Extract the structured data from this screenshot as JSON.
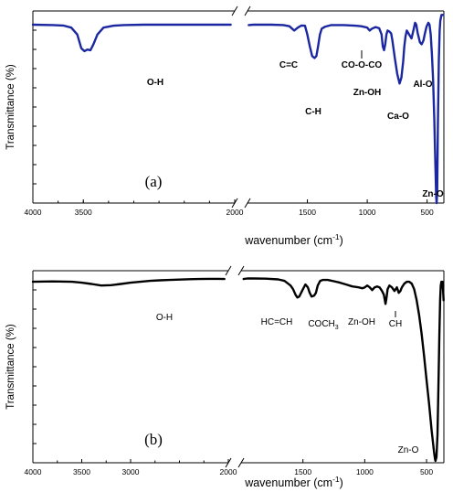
{
  "chart_data": [
    {
      "panel": "(a)",
      "type": "line",
      "ylabel": "Transmittance (%)",
      "xlabel_main": "wavenumber (cm",
      "xlabel_sup": "-1",
      "xlabel_close": ")",
      "xlim": [
        4000,
        360
      ],
      "x_break": 2000,
      "xticks": [
        4000,
        3500,
        2000,
        1500,
        1000,
        500
      ],
      "line_color": "#1a27a0",
      "series": [
        {
          "points": [
            [
              4000,
              93
            ],
            [
              3800,
              92.8
            ],
            [
              3700,
              92.6
            ],
            [
              3620,
              91.5
            ],
            [
              3560,
              88
            ],
            [
              3520,
              81
            ],
            [
              3490,
              79.5
            ],
            [
              3460,
              80.3
            ],
            [
              3430,
              80
            ],
            [
              3400,
              83
            ],
            [
              3360,
              88
            ],
            [
              3300,
              91.5
            ],
            [
              3200,
              92.5
            ],
            [
              3100,
              92.8
            ],
            [
              2900,
              93
            ],
            [
              2700,
              93
            ],
            [
              2500,
              93
            ],
            [
              2300,
              93
            ],
            [
              2100,
              93
            ],
            [
              2040,
              93
            ]
          ]
        },
        {
          "points": [
            [
              1990,
              92.8
            ],
            [
              1950,
              93
            ],
            [
              1900,
              93
            ],
            [
              1800,
              93
            ],
            [
              1700,
              92.8
            ],
            [
              1650,
              92.2
            ],
            [
              1610,
              90
            ],
            [
              1580,
              91.5
            ],
            [
              1550,
              92.6
            ],
            [
              1520,
              92.5
            ],
            [
              1500,
              88
            ],
            [
              1480,
              82
            ],
            [
              1460,
              77
            ],
            [
              1440,
              76
            ],
            [
              1425,
              77
            ],
            [
              1410,
              82
            ],
            [
              1395,
              88
            ],
            [
              1380,
              91
            ],
            [
              1350,
              92
            ],
            [
              1300,
              92.8
            ],
            [
              1200,
              92.8
            ],
            [
              1100,
              92.5
            ],
            [
              1050,
              92.2
            ],
            [
              1000,
              91.5
            ],
            [
              980,
              90
            ],
            [
              960,
              91
            ],
            [
              930,
              91.8
            ],
            [
              900,
              91.2
            ],
            [
              880,
              88
            ],
            [
              870,
              82
            ],
            [
              860,
              80
            ],
            [
              850,
              83
            ],
            [
              840,
              88
            ],
            [
              830,
              90
            ],
            [
              815,
              89.5
            ],
            [
              800,
              88.5
            ],
            [
              790,
              85
            ],
            [
              770,
              76
            ],
            [
              750,
              68
            ],
            [
              730,
              63
            ],
            [
              715,
              66
            ],
            [
              700,
              74
            ],
            [
              690,
              82
            ],
            [
              680,
              87
            ],
            [
              670,
              90
            ],
            [
              650,
              88
            ],
            [
              630,
              86
            ],
            [
              615,
              90
            ],
            [
              600,
              94
            ],
            [
              590,
              93
            ],
            [
              580,
              89
            ],
            [
              560,
              84
            ],
            [
              545,
              83
            ],
            [
              530,
              85
            ],
            [
              520,
              88
            ],
            [
              505,
              92
            ],
            [
              490,
              94
            ],
            [
              480,
              93
            ],
            [
              470,
              88
            ],
            [
              460,
              78
            ],
            [
              450,
              65
            ],
            [
              440,
              45
            ],
            [
              430,
              20
            ],
            [
              424,
              5
            ],
            [
              420,
              2
            ],
            [
              416,
              8
            ],
            [
              410,
              40
            ],
            [
              402,
              75
            ],
            [
              395,
              90
            ],
            [
              390,
              95
            ],
            [
              380,
              98
            ],
            [
              365,
              98
            ]
          ]
        }
      ],
      "annotations": [
        {
          "text": "O-H",
          "x": 3460,
          "y": 68
        },
        {
          "text": "C=C",
          "x": 1615,
          "y": 81
        },
        {
          "text": "C-H",
          "x": 1460,
          "y": 65
        },
        {
          "text": "CO-O-CO",
          "x": 1020,
          "y": 80
        },
        {
          "text": "Zn-OH",
          "x": 860,
          "y": 70
        },
        {
          "text": "Ca-O",
          "x": 740,
          "y": 52
        },
        {
          "text": "Al-O",
          "x": 570,
          "y": 72
        },
        {
          "text": "Zn-O",
          "x": 420,
          "y": -5
        }
      ]
    },
    {
      "panel": "(b)",
      "type": "line",
      "ylabel": "Transmittance (%)",
      "xlabel_main": "wavenumber (cm",
      "xlabel_sup": "-1",
      "xlabel_close": ")",
      "xlim": [
        4000,
        360
      ],
      "x_break": 2000,
      "xticks": [
        4000,
        3500,
        3000,
        2000,
        1500,
        1000,
        500
      ],
      "line_color": "#000000",
      "series": [
        {
          "points": [
            [
              4000,
              98
            ],
            [
              3800,
              98.2
            ],
            [
              3600,
              98
            ],
            [
              3500,
              97.5
            ],
            [
              3400,
              96.8
            ],
            [
              3300,
              96
            ],
            [
              3200,
              96.2
            ],
            [
              3100,
              96.8
            ],
            [
              3000,
              97.5
            ],
            [
              2900,
              98
            ],
            [
              2800,
              98.5
            ],
            [
              2700,
              98.8
            ],
            [
              2600,
              99
            ],
            [
              2500,
              99.2
            ],
            [
              2400,
              99.4
            ],
            [
              2300,
              99.5
            ],
            [
              2200,
              99.6
            ],
            [
              2100,
              99.6
            ],
            [
              2040,
              99.5
            ]
          ]
        },
        {
          "points": [
            [
              1980,
              99.5
            ],
            [
              1950,
              99.8
            ],
            [
              1900,
              99.8
            ],
            [
              1800,
              99.7
            ],
            [
              1700,
              99.3
            ],
            [
              1650,
              98.5
            ],
            [
              1620,
              97
            ],
            [
              1600,
              96
            ],
            [
              1580,
              94
            ],
            [
              1560,
              91
            ],
            [
              1545,
              89.5
            ],
            [
              1530,
              90
            ],
            [
              1515,
              92
            ],
            [
              1500,
              94
            ],
            [
              1480,
              96.5
            ],
            [
              1460,
              95
            ],
            [
              1445,
              92
            ],
            [
              1430,
              90
            ],
            [
              1410,
              90.5
            ],
            [
              1395,
              92
            ],
            [
              1380,
              96
            ],
            [
              1360,
              98.5
            ],
            [
              1340,
              99
            ],
            [
              1300,
              99
            ],
            [
              1250,
              98.3
            ],
            [
              1200,
              97.5
            ],
            [
              1150,
              96.5
            ],
            [
              1100,
              95.5
            ],
            [
              1050,
              95
            ],
            [
              1020,
              94.5
            ],
            [
              1000,
              95
            ],
            [
              980,
              96
            ],
            [
              960,
              95
            ],
            [
              940,
              93.5
            ],
            [
              920,
              95
            ],
            [
              900,
              95.5
            ],
            [
              880,
              95
            ],
            [
              860,
              93
            ],
            [
              845,
              91
            ],
            [
              832,
              86
            ],
            [
              825,
              89
            ],
            [
              815,
              94
            ],
            [
              800,
              96
            ],
            [
              780,
              95
            ],
            [
              760,
              93
            ],
            [
              740,
              95
            ],
            [
              725,
              92
            ],
            [
              712,
              93
            ],
            [
              700,
              95
            ],
            [
              680,
              97
            ],
            [
              660,
              98
            ],
            [
              640,
              98
            ],
            [
              620,
              97
            ],
            [
              600,
              94
            ],
            [
              580,
              88
            ],
            [
              560,
              80
            ],
            [
              540,
              70
            ],
            [
              520,
              58
            ],
            [
              500,
              45
            ],
            [
              480,
              32
            ],
            [
              460,
              18
            ],
            [
              440,
              6
            ],
            [
              432,
              2
            ],
            [
              428,
              1
            ],
            [
              420,
              3
            ],
            [
              412,
              15
            ],
            [
              404,
              40
            ],
            [
              396,
              70
            ],
            [
              390,
              88
            ],
            [
              385,
              96
            ],
            [
              380,
              98
            ],
            [
              372,
              98
            ],
            [
              366,
              93
            ],
            [
              362,
              88
            ]
          ]
        }
      ],
      "annotations": [
        {
          "text": "O-H",
          "x": 3480,
          "y": 84
        },
        {
          "text": "HC=CH",
          "x": 1590,
          "y": 80
        },
        {
          "text": "COCH",
          "sub": "3",
          "x": 1350,
          "y": 79
        },
        {
          "text": "Zn-OH",
          "x": 860,
          "y": 80
        },
        {
          "text": "CH",
          "x": 720,
          "y": 82
        },
        {
          "text": "Zn-O",
          "x": 505,
          "y": 0
        }
      ]
    }
  ]
}
